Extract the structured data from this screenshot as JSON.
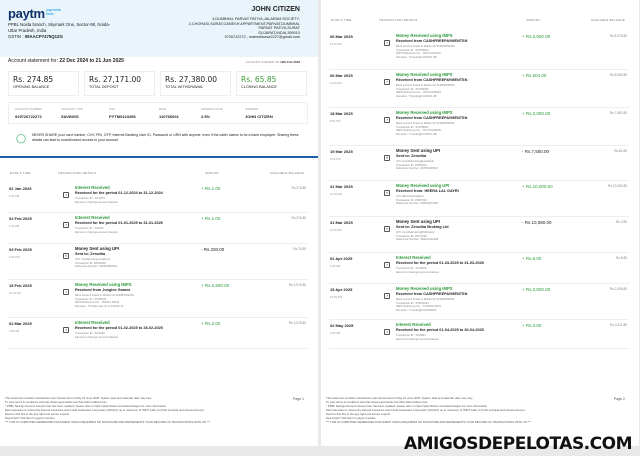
{
  "bank": {
    "logo": "paytm",
    "logo_sub": "payments bank",
    "address": [
      "PPBL Noida branch, Skymark One, Sector-98, Noida-",
      "Uttar Pradesh, India"
    ],
    "gstin_label": "GSTIN :",
    "gstin": "09AACP7475Q1ZG"
  },
  "customer": {
    "name": "JOHN CITIZEN",
    "address": [
      "4,DUMBHAL PARVAT PATIYA,JALARAM SOCIETY-",
      "2,CHORASI,SURAT,GANESH APPARTMENT,PARVAT,DUMBHAL",
      "PARVAT PATIYA,SURAT",
      "GUJARAT,INDIA,395010",
      "9726722272 , maheshkava2227@gmail.com"
    ]
  },
  "statement": {
    "label": "Account statement for:",
    "period": "22 Dec 2024 to 21 Jun 2025",
    "opened_label": "ACCOUNT OPENED ON",
    "opened": "19th Feb 2018"
  },
  "summary": [
    {
      "value": "Rs. 274.85",
      "label": "OPENING BALANCE"
    },
    {
      "value": "Rs. 27,171.00",
      "label": "TOTAL DEPOSIT"
    },
    {
      "value": "Rs. 27,380.00",
      "label": "TOTAL WITHDRAWAL"
    },
    {
      "value": "Rs. 65.85",
      "label": "CLOSING BALANCE",
      "color": "#3a9a3a"
    }
  ],
  "account": [
    {
      "label": "ACCOUNT NUMBER",
      "value": "919726722272"
    },
    {
      "label": "ACCOUNT TYPE",
      "value": "SAVINGS"
    },
    {
      "label": "IFSC",
      "value": "PYTM0123456"
    },
    {
      "label": "MICR",
      "value": "110766001"
    },
    {
      "label": "INTEREST RATE",
      "value": "2.5%"
    },
    {
      "label": "NOMINEE",
      "value": "JOHN CITIZEN"
    }
  ],
  "notice": "NEVER SHARE your card number, CVV, PIN, OTP, Internet Banking User ID, Password or URN with anyone, even if the caller claims to be a bank employee. Sharing these details can lead to unauthorized access to your account",
  "columns": [
    "DATE & TIME",
    "TRANSACTION DETAILS",
    "AMOUNT",
    "AVAILABLE BALANCE"
  ],
  "pages": [
    {
      "page_label": "Page 1",
      "transactions": [
        {
          "date": "02 Jan 2025",
          "time": "2:26 AM",
          "title": "Interest Received",
          "sub": "Received for the period 01-12-2024 to 31-12-2024",
          "details": [
            "Transaction ID : IHL1874",
            "Earned on Savings account balance"
          ],
          "amount": "+ Rs.1.00",
          "credit": true,
          "balance": "Rs.275.85",
          "icon": "interest-icon"
        },
        {
          "date": "02 Feb 2025",
          "time": "1:22 AM",
          "title": "Interest Received",
          "sub": "Received for the period 01-01-2025 to 31-01-2025",
          "details": [
            "Transaction ID : IN2025",
            "Earned on Savings account balance"
          ],
          "amount": "+ Rs.1.00",
          "credit": true,
          "balance": "Rs.276.85",
          "icon": "interest-icon"
        },
        {
          "date": "03 Feb 2025",
          "time": "2:04 PM",
          "title": "Money Sent using UPI",
          "sub": "Sent to: Zerodha",
          "details": [
            "UPI: zerodha.sampaxis@icici",
            "Transaction ID: 38528420",
            "Reference Number: 503416869462"
          ],
          "amount": "- Rs.200.00",
          "credit": false,
          "balance": "Rs.76.85",
          "icon": "upi-icon"
        },
        {
          "date": "15 Feb 2025",
          "time": "10:44 AM",
          "title": "Money Received using IMPS",
          "sub": "Received from Junglee Games",
          "details": [
            "Bank account linked to Mobile No 919384782210",
            "Transaction ID : IP185006",
            "IMPS Reference No. : 304512 48342",
            "Remarks : Transfer wall rel 17122010 1F"
          ],
          "amount": "+ Rs.2,500.00",
          "credit": true,
          "balance": "Rs.2,576.85",
          "icon": "imps-icon"
        },
        {
          "date": "02 Mar 2025",
          "time": "3:05 AM",
          "title": "Interest Received",
          "sub": "Received for the period 01-02-2025 to 28-02-2025",
          "details": [
            "Transaction ID : IN22452",
            "Earned on Savings account balance"
          ],
          "amount": "+ Rs.2.00",
          "credit": true,
          "balance": "Rs.2,578.85",
          "icon": "interest-icon"
        }
      ]
    },
    {
      "page_label": "Page 2",
      "transactions": [
        {
          "date": "06 Mar 2025",
          "time": "11:26 AM",
          "title": "Money Received using IMPS",
          "sub": "Received from CASHFREEPAYMENTSN",
          "details": [
            "Bank account linked to Mobile No 919000050000",
            "Transaction ID : IP1565604",
            "IMPS Reference No. : 306712166437",
            "Remarks : Transfer@n010000 HB"
          ],
          "amount": "+ Rs.2,500.00",
          "credit": true,
          "balance": "Rs.5,078.85",
          "icon": "imps-icon"
        },
        {
          "date": "06 Mar 2025",
          "time": "11:26 AM",
          "title": "Money Received using IMPS",
          "sub": "Received from CASHFREEPAYMENTSN",
          "details": [
            "Bank account linked to Mobile No 919000050000",
            "Transaction ID : IP1565606",
            "IMPS Reference No. : 306712166224",
            "Remarks : Transfer@n010000 HB"
          ],
          "amount": "+ Rs.504.00",
          "credit": true,
          "balance": "Rs.5,582.85",
          "icon": "imps-icon"
        },
        {
          "date": "18 Mar 2025",
          "time": "8:51 PM",
          "title": "Money Received using IMPS",
          "sub": "Received from CASHFREEPAYMENTSN",
          "details": [
            "Bank account linked to Mobile No 919000050000",
            "Transaction ID : IN4789841",
            "IMPS Reference No. : 307715166005",
            "Remarks : Transfer@n010237 HB"
          ],
          "amount": "+ Rs.2,000.00",
          "credit": true,
          "balance": "Rs.7,582.85",
          "icon": "imps-icon"
        },
        {
          "date": "19 Mar 2025",
          "time": "5:06 PM",
          "title": "Money Sent using UPI",
          "sub": "Sent to: Zerodha",
          "details": [
            "UPI: zerodhabroking@axisbank",
            "Transaction ID: 35280343",
            "Reference Number: 307816466013"
          ],
          "amount": "- Rs.7,500.00",
          "credit": false,
          "balance": "Rs.82.85",
          "icon": "upi-icon"
        },
        {
          "date": "31 Mar 2025",
          "time": "10:42 AM",
          "title": "Money Received using UPI",
          "sub": "Received from: HEERA LAL GAYRI",
          "details": [
            "UPI: lalheeraraval@axl",
            "Transaction ID: 35957026",
            "Reference Number: 309015874466"
          ],
          "amount": "+ Rs.10,000.00",
          "credit": true,
          "balance": "Rs.10,082.85",
          "icon": "upi-icon"
        },
        {
          "date": "31 Mar 2025",
          "time": "11:06 AM",
          "title": "Money Sent using UPI",
          "sub": "Sent to: Zerodha Broking Ltd",
          "details": [
            "UPI: zerodhabroking@hdfcbank",
            "Transaction ID: 35271292",
            "Reference Number: 309016223468"
          ],
          "amount": "- Rs.10,080.00",
          "credit": false,
          "balance": "Rs.2.85",
          "icon": "upi-icon"
        },
        {
          "date": "02 Apr 2025",
          "time": "2:06 AM",
          "title": "Interest Received",
          "sub": "Received for the period 01-03-2025 to 31-03-2025",
          "details": [
            "Transaction ID : IN.26829",
            "Earned on Savings account balance"
          ],
          "amount": "+ Rs.6.00",
          "credit": true,
          "balance": "Rs.8.85",
          "icon": "interest-icon"
        },
        {
          "date": "15 Apr 2025",
          "time": "10:45 PM",
          "title": "Money Received using IMPS",
          "sub": "Received from CASHFREEPAYMENTSN",
          "details": [
            "Bank account linked to Mobile No 919000050000",
            "Transaction ID : IP5002294",
            "IMPS Reference No. : 310522270079",
            "Remarks : Transfer@n010258300"
          ],
          "amount": "+ Rs.2,500.00",
          "credit": true,
          "balance": "Rs.2,508.85",
          "icon": "imps-icon"
        },
        {
          "date": "02 May 2025",
          "time": "2:05 AM",
          "title": "Interest Received",
          "sub": "Received for the period 01-04-2025 to 30-04-2025",
          "details": [
            "Transaction ID : IN11893",
            "Earned on Savings account balance"
          ],
          "amount": "+ Rs.3.00",
          "credit": true,
          "balance": "Rs.2,511.85",
          "icon": "interest-icon"
        }
      ]
    }
  ],
  "footer": [
    "This statement contains transactions upto System End of Day 21 June 2025. System date and calendar date may vary.",
    "To view terms & conditions visit http://www.paytmbank.com/Terms&Conditions.htm",
    "* PPBL Savings Account Interest rate has been updated, please refer to https://paytmbank.com/rates/charges for more information",
    "Each depositor is insured by Deposit Insurance and Credit Guarantee Corporation (DICGC) up to maximum of INR 5 Lakh, for both principal and interest amount",
    "Need to find this in the app right and secure experts",
    "Need help? Visit http://m.paytm.me/care",
    "*** THIS IS COMPUTER GENERATED DOCUMENT WHICH REQUIRES NO SIGNATURE AND REPRESENTS YOUR RECORD OF TRANSACTIONS WITH US ***"
  ],
  "watermark": "AMIGOSDEPELOTAS.COM"
}
